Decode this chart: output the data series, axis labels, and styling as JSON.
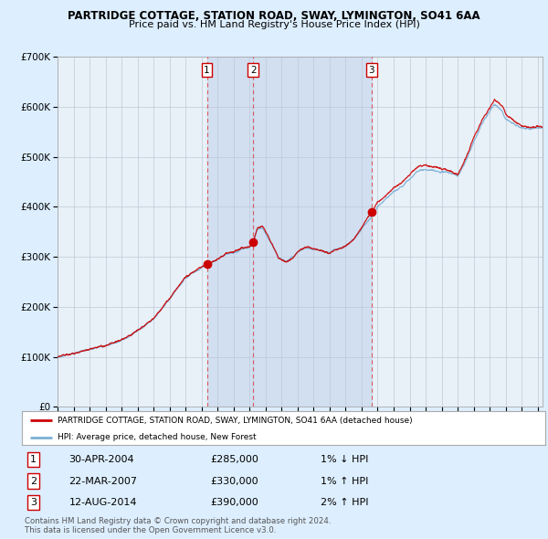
{
  "title_line1": "PARTRIDGE COTTAGE, STATION ROAD, SWAY, LYMINGTON, SO41 6AA",
  "title_line2": "Price paid vs. HM Land Registry's House Price Index (HPI)",
  "ylim": [
    0,
    700000
  ],
  "yticks": [
    0,
    100000,
    200000,
    300000,
    400000,
    500000,
    600000,
    700000
  ],
  "ytick_labels": [
    "£0",
    "£100K",
    "£200K",
    "£300K",
    "£400K",
    "£500K",
    "£600K",
    "£700K"
  ],
  "sale_prices": [
    285000,
    330000,
    390000
  ],
  "sale_labels": [
    "1",
    "2",
    "3"
  ],
  "sale_decimal": [
    2004.33,
    2007.22,
    2014.61
  ],
  "sale_info": [
    {
      "num": "1",
      "date": "30-APR-2004",
      "price": "£285,000",
      "hpi": "1% ↓ HPI"
    },
    {
      "num": "2",
      "date": "22-MAR-2007",
      "price": "£330,000",
      "hpi": "1% ↑ HPI"
    },
    {
      "num": "3",
      "date": "12-AUG-2014",
      "price": "£390,000",
      "hpi": "2% ↑ HPI"
    }
  ],
  "legend_line1": "PARTRIDGE COTTAGE, STATION ROAD, SWAY, LYMINGTON, SO41 6AA (detached house)",
  "legend_line2": "HPI: Average price, detached house, New Forest",
  "footer_line1": "Contains HM Land Registry data © Crown copyright and database right 2024.",
  "footer_line2": "This data is licensed under the Open Government Licence v3.0.",
  "line_color_red": "#cc0000",
  "line_color_blue": "#7ab0d4",
  "background_color": "#ddeeff",
  "plot_bg_color": "#e8f0f8",
  "grid_color": "#c0c8d8",
  "dashed_color": "#dd4444",
  "shade_color": "#c8d8ee",
  "xlim_start": 1995,
  "xlim_end": 2025.3
}
